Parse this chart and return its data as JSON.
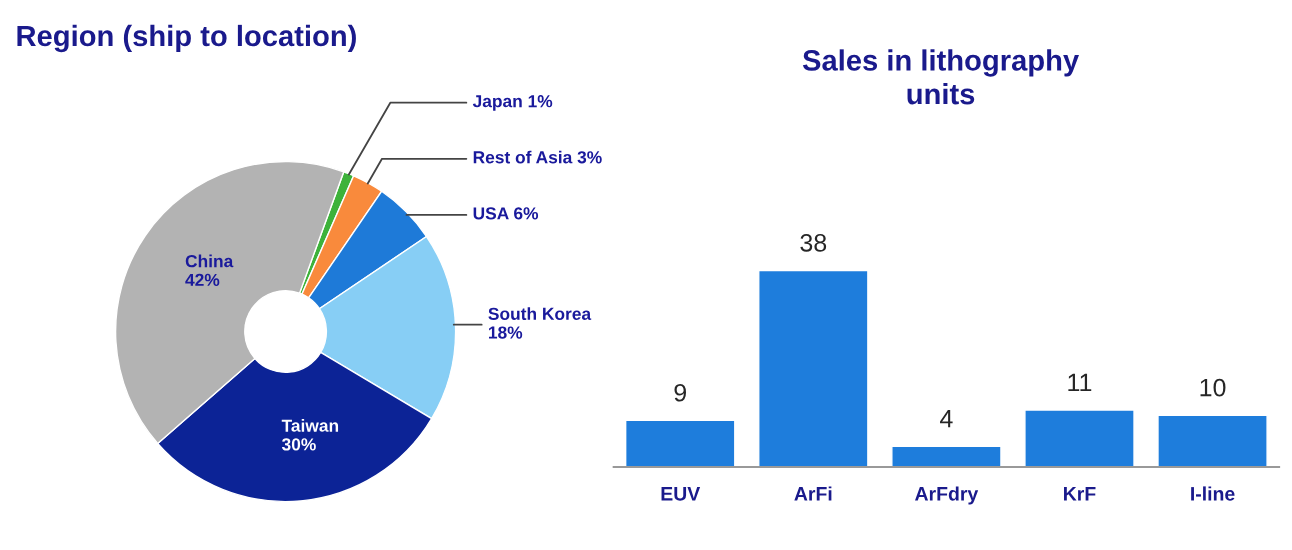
{
  "chart_data": [
    {
      "type": "donut",
      "title": "Region (ship to location)",
      "categories": [
        "Japan",
        "Rest of Asia",
        "USA",
        "South Korea",
        "Taiwan",
        "China"
      ],
      "values": [
        1,
        3,
        6,
        18,
        30,
        42
      ],
      "value_labels": [
        "1%",
        "3%",
        "6%",
        "18%",
        "30%",
        "42%"
      ],
      "colors": [
        "#3db23a",
        "#f98a3c",
        "#1e7ad8",
        "#87cef5",
        "#0c2396",
        "#b3b3b3"
      ]
    },
    {
      "type": "bar",
      "title": "Sales in lithography\nunits",
      "categories": [
        "EUV",
        "ArFi",
        "ArFdry",
        "KrF",
        "I-line"
      ],
      "values": [
        9,
        38,
        4,
        11,
        10
      ],
      "color": "#1e7ddc",
      "data_labels": true
    }
  ]
}
